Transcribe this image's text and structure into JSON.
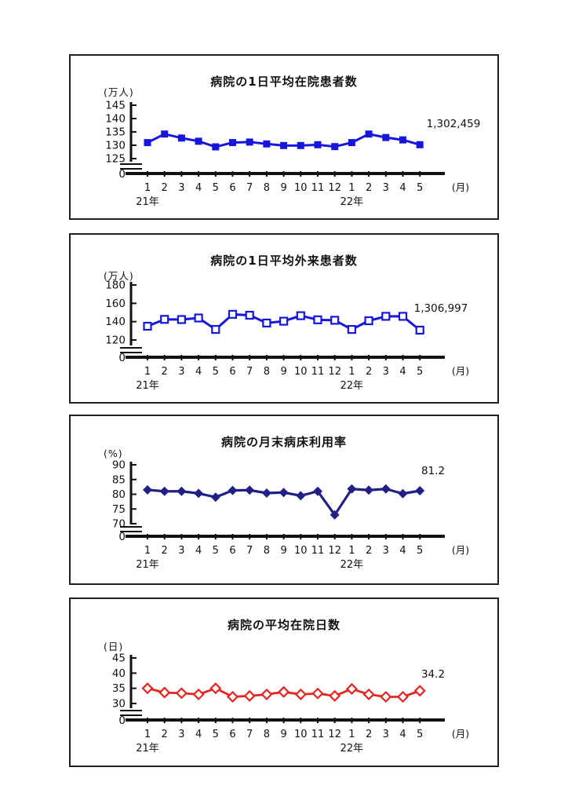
{
  "page": {
    "background": "#ffffff"
  },
  "chart_data": [
    {
      "type": "line",
      "title": "病院の1日平均在院患者数",
      "ylabel": "(万人)",
      "xlabel": "(月)",
      "zero_label": "0",
      "categories": [
        "1",
        "2",
        "3",
        "4",
        "5",
        "6",
        "7",
        "8",
        "9",
        "10",
        "11",
        "12",
        "1",
        "2",
        "3",
        "4",
        "5"
      ],
      "year_labels": [
        {
          "text": "21年",
          "month_index": 0
        },
        {
          "text": "22年",
          "month_index": 12
        }
      ],
      "yticks": [
        145,
        140,
        135,
        130,
        125
      ],
      "ylim": [
        125,
        145
      ],
      "axis_break": true,
      "values": [
        131.0,
        134.2,
        132.7,
        131.5,
        129.4,
        131.0,
        131.2,
        130.5,
        129.9,
        129.9,
        130.2,
        129.5,
        131.0,
        134.2,
        132.9,
        132.0,
        130.2
      ],
      "end_label": {
        "text": "1,302,459",
        "x": 488,
        "y": 91
      },
      "color": "#1616dc",
      "marker": "square-filled",
      "line_width": 3,
      "plot": {
        "y_top": 63,
        "y_bottom": 131,
        "axis_y": 150
      }
    },
    {
      "type": "line",
      "title": "病院の1日平均外来患者数",
      "ylabel": "(万人)",
      "xlabel": "(月)",
      "zero_label": "0",
      "categories": [
        "1",
        "2",
        "3",
        "4",
        "5",
        "6",
        "7",
        "8",
        "9",
        "10",
        "11",
        "12",
        "1",
        "2",
        "3",
        "4",
        "5"
      ],
      "year_labels": [
        {
          "text": "21年",
          "month_index": 0
        },
        {
          "text": "22年",
          "month_index": 12
        }
      ],
      "yticks": [
        180,
        160,
        140,
        120
      ],
      "ylim": [
        120,
        180
      ],
      "axis_break": true,
      "values": [
        135.0,
        142.5,
        142.3,
        144.0,
        131.5,
        148.0,
        147.0,
        138.5,
        140.5,
        146.5,
        142.0,
        141.5,
        131.5,
        141.0,
        145.8,
        145.8,
        130.7
      ],
      "end_label": {
        "text": "1,306,997",
        "x": 472,
        "y": 98
      },
      "color": "#1616dc",
      "marker": "square-open",
      "line_width": 3,
      "plot": {
        "y_top": 64,
        "y_bottom": 134,
        "axis_y": 156
      }
    },
    {
      "type": "line",
      "title": "病院の月末病床利用率",
      "ylabel": "(%)",
      "xlabel": "(月)",
      "zero_label": "0",
      "categories": [
        "1",
        "2",
        "3",
        "4",
        "5",
        "6",
        "7",
        "8",
        "9",
        "10",
        "11",
        "12",
        "1",
        "2",
        "3",
        "4",
        "5"
      ],
      "year_labels": [
        {
          "text": "21年",
          "month_index": 0
        },
        {
          "text": "22年",
          "month_index": 12
        }
      ],
      "yticks": [
        90,
        85,
        80,
        75,
        70
      ],
      "ylim": [
        70,
        90
      ],
      "axis_break": true,
      "values": [
        81.5,
        81.0,
        81.0,
        80.3,
        79.0,
        81.3,
        81.4,
        80.4,
        80.6,
        79.5,
        81.0,
        73.0,
        81.8,
        81.4,
        81.8,
        80.2,
        81.2
      ],
      "end_label": {
        "text": "81.2",
        "x": 462,
        "y": 74
      },
      "color": "#202085",
      "marker": "diamond-filled",
      "line_width": 3.2,
      "plot": {
        "y_top": 62,
        "y_bottom": 137,
        "axis_y": 153
      }
    },
    {
      "type": "line",
      "title": "病院の平均在院日数",
      "ylabel": "(日)",
      "xlabel": "(月)",
      "zero_label": "0",
      "categories": [
        "1",
        "2",
        "3",
        "4",
        "5",
        "6",
        "7",
        "8",
        "9",
        "10",
        "11",
        "12",
        "1",
        "2",
        "3",
        "4",
        "5"
      ],
      "year_labels": [
        {
          "text": "21年",
          "month_index": 0
        },
        {
          "text": "22年",
          "month_index": 12
        }
      ],
      "yticks": [
        45,
        40,
        35,
        30
      ],
      "ylim": [
        30,
        45
      ],
      "axis_break": true,
      "values": [
        35.0,
        33.6,
        33.4,
        33.0,
        35.0,
        32.2,
        32.5,
        33.0,
        33.8,
        33.0,
        33.3,
        32.5,
        34.8,
        33.0,
        32.2,
        32.2,
        34.2
      ],
      "end_label": {
        "text": "34.2",
        "x": 462,
        "y": 100
      },
      "color": "#e62420",
      "marker": "diamond-open",
      "line_width": 2.8,
      "plot": {
        "y_top": 75,
        "y_bottom": 133,
        "axis_y": 154
      }
    }
  ]
}
